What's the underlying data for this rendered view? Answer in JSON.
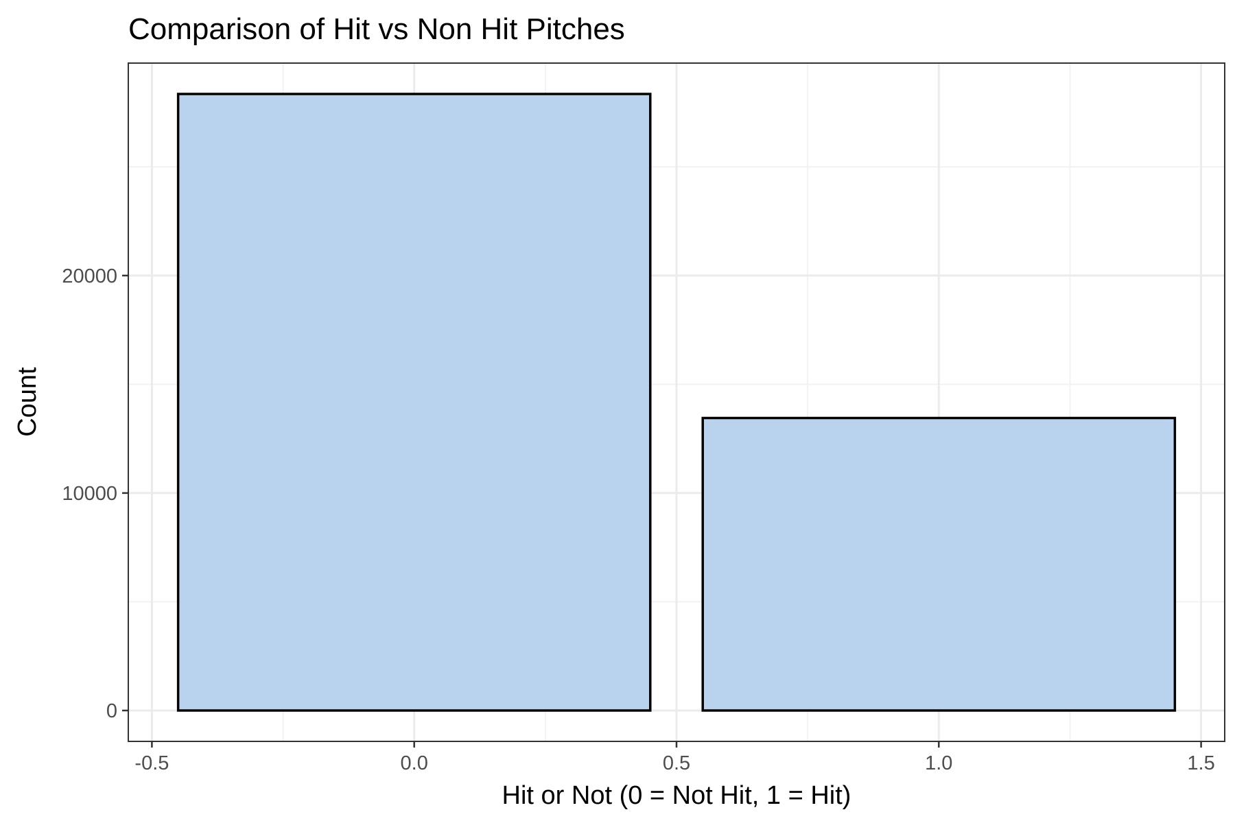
{
  "chart_data": {
    "type": "bar",
    "title": "Comparison of Hit vs Non Hit Pitches",
    "xlabel": "Hit or Not (0 = Not Hit, 1 = Hit)",
    "ylabel": "Count",
    "x": [
      0,
      1
    ],
    "values": [
      28350,
      13450
    ],
    "bar_width": 0.9,
    "xlim": [
      -0.545,
      1.545
    ],
    "ylim": [
      -1420,
      29770
    ],
    "x_ticks": [
      -0.5,
      0.0,
      0.5,
      1.0,
      1.5
    ],
    "x_tick_labels": [
      "-0.5",
      "0.0",
      "0.5",
      "1.0",
      "1.5"
    ],
    "x_minor_ticks": [
      -0.25,
      0.25,
      0.75,
      1.25
    ],
    "y_ticks": [
      0,
      10000,
      20000
    ],
    "y_tick_labels": [
      "0",
      "10000",
      "20000"
    ],
    "y_minor_ticks": [
      5000,
      15000,
      25000
    ],
    "grid": true,
    "legend": "none",
    "colors": {
      "bar_fill": "#b9d3ee",
      "bar_outline": "#000000"
    }
  }
}
